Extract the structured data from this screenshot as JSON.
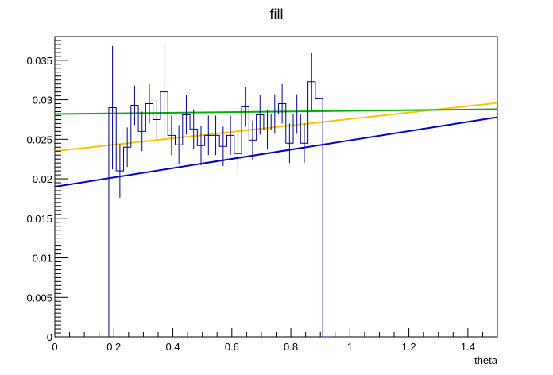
{
  "chart_data": {
    "type": "line",
    "title": "fill",
    "xlabel": "theta",
    "ylabel": "",
    "xlim": [
      0,
      1.5
    ],
    "ylim": [
      0,
      0.038
    ],
    "grid": false,
    "legend": "none",
    "x_tick_labels": [
      "0",
      "0.2",
      "0.4",
      "0.6",
      "0.8",
      "1",
      "1.2",
      "1.4"
    ],
    "y_tick_labels": [
      "0",
      "0.005",
      "0.01",
      "0.015",
      "0.02",
      "0.025",
      "0.03",
      "0.035"
    ],
    "histogram": {
      "color": "#00008b",
      "bin_width": 0.025,
      "bin_low_edges": [
        0.183,
        0.208,
        0.233,
        0.258,
        0.283,
        0.308,
        0.333,
        0.358,
        0.383,
        0.408,
        0.433,
        0.458,
        0.483,
        0.508,
        0.533,
        0.558,
        0.583,
        0.608,
        0.633,
        0.658,
        0.683,
        0.708,
        0.733,
        0.758,
        0.783,
        0.808,
        0.833,
        0.858,
        0.883,
        0.908
      ],
      "values": [
        0.029,
        0.021,
        0.024,
        0.0293,
        0.026,
        0.0295,
        0.0275,
        0.031,
        0.0255,
        0.0243,
        0.0281,
        0.0263,
        0.0242,
        0.0255,
        0.0255,
        0.0241,
        0.0255,
        0.0232,
        0.0291,
        0.0249,
        0.0281,
        0.0262,
        0.0282,
        0.0295,
        0.0245,
        0.0282,
        0.0245,
        0.0323,
        0.0302,
        0.0
      ],
      "errors": [
        0.0078,
        0.0034,
        0.0025,
        0.0025,
        0.0025,
        0.0025,
        0.0025,
        0.0062,
        0.0025,
        0.0025,
        0.0025,
        0.0025,
        0.0025,
        0.0025,
        0.0025,
        0.0025,
        0.0025,
        0.0025,
        0.0025,
        0.0025,
        0.0025,
        0.0025,
        0.0025,
        0.0025,
        0.0025,
        0.0025,
        0.0025,
        0.0036,
        0.0025,
        0.0
      ]
    },
    "series": [
      {
        "color": "#0000c8",
        "x": [
          0,
          1.5
        ],
        "y": [
          0.019,
          0.0278
        ]
      },
      {
        "color": "#ffc400",
        "x": [
          0,
          1.5
        ],
        "y": [
          0.0235,
          0.0296
        ]
      },
      {
        "color": "#00b000",
        "x": [
          0,
          1.5
        ],
        "y": [
          0.0282,
          0.0288
        ]
      }
    ]
  }
}
